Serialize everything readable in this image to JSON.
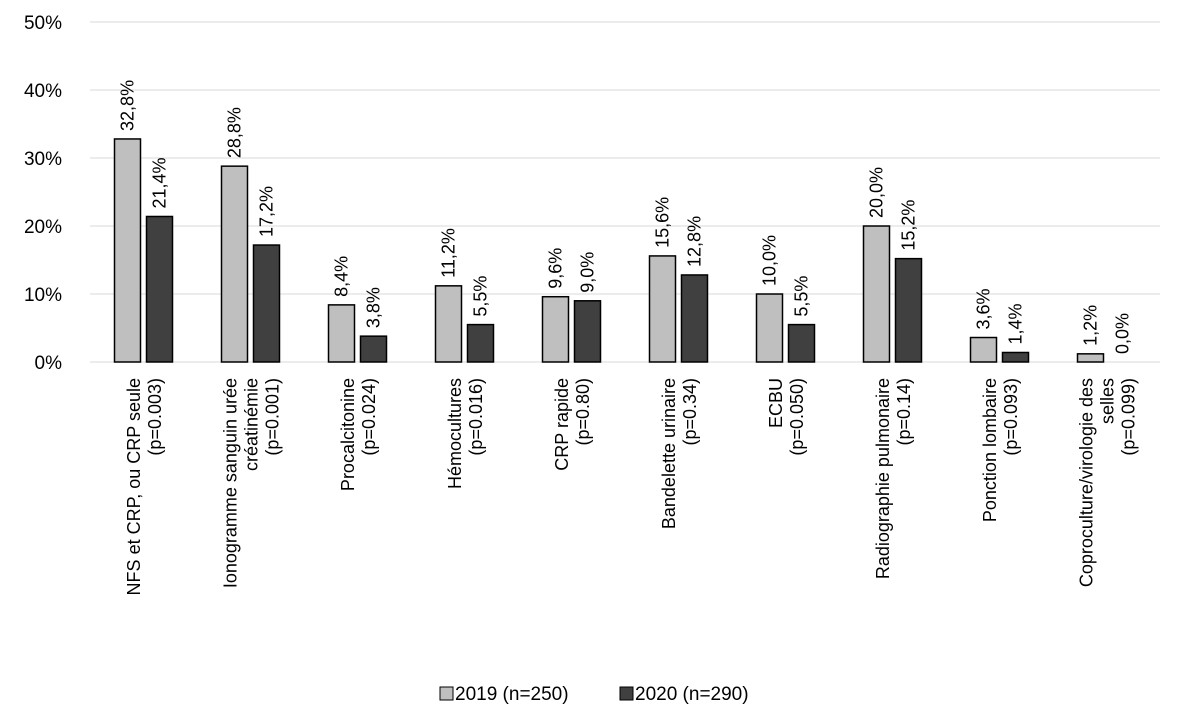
{
  "chart_data": {
    "type": "bar",
    "title": "",
    "xlabel": "",
    "ylabel": "",
    "ylim": [
      0,
      50
    ],
    "y_ticks": [
      "0%",
      "10%",
      "20%",
      "30%",
      "40%",
      "50%"
    ],
    "y_tick_values": [
      0,
      10,
      20,
      30,
      40,
      50
    ],
    "grid": true,
    "legend_position": "bottom",
    "categories": [
      [
        "NFS et CRP, ou CRP seule",
        "(p=0.003)"
      ],
      [
        "Ionogramme sanguin urée",
        "créatinémie",
        "(p=0.001)"
      ],
      [
        "Procalcitonine",
        "(p=0.024)"
      ],
      [
        "Hémocultures",
        "(p=0.016)"
      ],
      [
        "CRP rapide",
        "(p=0.80)"
      ],
      [
        "Bandelette urinaire",
        "(p=0.34)"
      ],
      [
        "ECBU",
        "(p=0.050)"
      ],
      [
        "Radiographie pulmonaire",
        "(p=0.14)"
      ],
      [
        "Ponction lombaire",
        "(p=0.093)"
      ],
      [
        "Coproculture/virologie des",
        "selles",
        "(p=0.099)"
      ]
    ],
    "series": [
      {
        "name": "2019 (n=250)",
        "color": "#bfbfbf",
        "values": [
          32.8,
          28.8,
          8.4,
          11.2,
          9.6,
          15.6,
          10.0,
          20.0,
          3.6,
          1.2
        ],
        "labels": [
          "32,8%",
          "28,8%",
          "8,4%",
          "11,2%",
          "9,6%",
          "15,6%",
          "10,0%",
          "20,0%",
          "3,6%",
          "1,2%"
        ]
      },
      {
        "name": "2020 (n=290)",
        "color": "#404040",
        "values": [
          21.4,
          17.2,
          3.8,
          5.5,
          9.0,
          12.8,
          5.5,
          15.2,
          1.4,
          0.0
        ],
        "labels": [
          "21,4%",
          "17,2%",
          "3,8%",
          "5,5%",
          "9,0%",
          "12,8%",
          "5,5%",
          "15,2%",
          "1,4%",
          "0,0%"
        ]
      }
    ]
  }
}
